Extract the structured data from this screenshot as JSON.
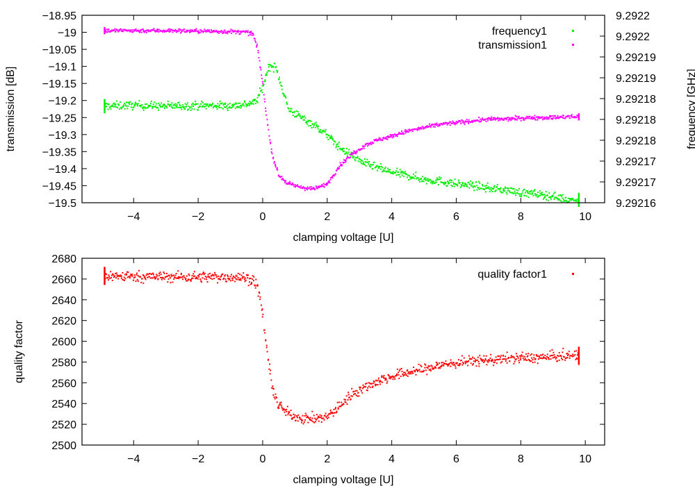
{
  "chart_data": [
    {
      "type": "scatter",
      "title": "",
      "xlabel": "clamping voltage [U]",
      "ylabel": "transmission [dB]",
      "y2label": "frequency [GHz]",
      "xlim": [
        -5.6,
        10.6
      ],
      "ylim": [
        -19.5,
        -18.95
      ],
      "y2lim": [
        9.29216,
        9.292225
      ],
      "xticks": [
        -4,
        -2,
        0,
        2,
        4,
        6,
        8,
        10
      ],
      "xtick_labels": [
        "−4",
        "−2",
        "0",
        "2",
        "4",
        "6",
        "8",
        "10"
      ],
      "yticks": [
        -19.5,
        -19.45,
        -19.4,
        -19.35,
        -19.3,
        -19.25,
        -19.2,
        -19.15,
        -19.1,
        -19.05,
        -19.0,
        -18.95
      ],
      "ytick_labels": [
        "−19.5",
        "−19.45",
        "−19.4",
        "−19.35",
        "−19.3",
        "−19.25",
        "−19.2",
        "−19.15",
        "−19.1",
        "−19.05",
        "−19",
        "−18.95"
      ],
      "y2tick_labels": [
        "9.29216",
        "9.29217",
        "9.29217",
        "9.29218",
        "9.29218",
        "9.29218",
        "9.29219",
        "9.29219",
        "9.2922",
        "9.2922"
      ],
      "legend_position": "top-right",
      "series": [
        {
          "name": "frequency1",
          "axis": "right",
          "color": "#00ee00",
          "x": [
            -4.9,
            -4,
            -3,
            -2,
            -1,
            -0.6,
            -0.4,
            -0.2,
            0,
            0.2,
            0.4,
            0.6,
            0.8,
            1.2,
            1.6,
            2,
            2.4,
            2.8,
            3.2,
            3.6,
            4,
            4.5,
            5,
            5.5,
            6,
            6.5,
            7,
            7.5,
            8,
            8.5,
            9,
            9.5,
            9.8
          ],
          "y": [
            9.2921935,
            9.2921938,
            9.2921935,
            9.2921937,
            9.2921936,
            9.292194,
            9.2921945,
            9.292195,
            9.2922,
            9.2922075,
            9.292207,
            9.2922,
            9.2921925,
            9.2921895,
            9.292187,
            9.2921835,
            9.292179,
            9.292176,
            9.2921735,
            9.292172,
            9.2921705,
            9.2921695,
            9.292168,
            9.2921675,
            9.2921665,
            9.292166,
            9.292165,
            9.2921645,
            9.2921635,
            9.292163,
            9.2921622,
            9.292161,
            9.292161
          ],
          "noise": 7e-07,
          "points_per_unit": 60
        },
        {
          "name": "transmission1",
          "axis": "left",
          "color": "#ff00ff",
          "x": [
            -4.9,
            -3,
            -1,
            -0.5,
            -0.3,
            -0.15,
            0,
            0.1,
            0.2,
            0.3,
            0.5,
            0.8,
            1.2,
            1.6,
            2,
            2.4,
            2.8,
            3.2,
            3.6,
            4,
            4.5,
            5,
            5.5,
            6,
            6.5,
            7,
            7.5,
            8,
            8.5,
            9,
            9.5,
            9.8
          ],
          "y": [
            -18.995,
            -18.995,
            -18.998,
            -19.0,
            -19.005,
            -19.05,
            -19.15,
            -19.23,
            -19.3,
            -19.36,
            -19.42,
            -19.445,
            -19.455,
            -19.46,
            -19.445,
            -19.39,
            -19.355,
            -19.33,
            -19.315,
            -19.305,
            -19.29,
            -19.28,
            -19.27,
            -19.265,
            -19.26,
            -19.255,
            -19.255,
            -19.252,
            -19.25,
            -19.25,
            -19.248,
            -19.248
          ],
          "noise": 0.003,
          "points_per_unit": 60
        }
      ]
    },
    {
      "type": "scatter",
      "title": "",
      "xlabel": "clamping voltage [U]",
      "ylabel": "quality factor",
      "xlim": [
        -5.6,
        10.6
      ],
      "ylim": [
        2500,
        2680
      ],
      "xticks": [
        -4,
        -2,
        0,
        2,
        4,
        6,
        8,
        10
      ],
      "xtick_labels": [
        "−4",
        "−2",
        "0",
        "2",
        "4",
        "6",
        "8",
        "10"
      ],
      "yticks": [
        2500,
        2520,
        2540,
        2560,
        2580,
        2600,
        2620,
        2640,
        2660,
        2680
      ],
      "ytick_labels": [
        "2500",
        "2520",
        "2540",
        "2560",
        "2580",
        "2600",
        "2620",
        "2640",
        "2660",
        "2680"
      ],
      "legend_position": "top-right",
      "series": [
        {
          "name": "quality factor1",
          "axis": "left",
          "color": "#ff0000",
          "x": [
            -4.9,
            -3,
            -1,
            -0.5,
            -0.3,
            -0.2,
            -0.1,
            0,
            0.1,
            0.2,
            0.3,
            0.5,
            0.8,
            1.2,
            1.6,
            2,
            2.4,
            2.8,
            3.2,
            3.6,
            4,
            4.5,
            5,
            5.5,
            6,
            6.5,
            7,
            7.5,
            8,
            8.5,
            9,
            9.5,
            9.8
          ],
          "y": [
            2663,
            2662,
            2662,
            2661,
            2659,
            2655,
            2645,
            2625,
            2600,
            2575,
            2555,
            2538,
            2530,
            2526,
            2525,
            2527,
            2538,
            2550,
            2556,
            2562,
            2566,
            2570,
            2573,
            2577,
            2579,
            2581,
            2582,
            2583,
            2584,
            2584,
            2585,
            2586,
            2586
          ],
          "noise": 2.5,
          "points_per_unit": 60
        }
      ]
    }
  ]
}
